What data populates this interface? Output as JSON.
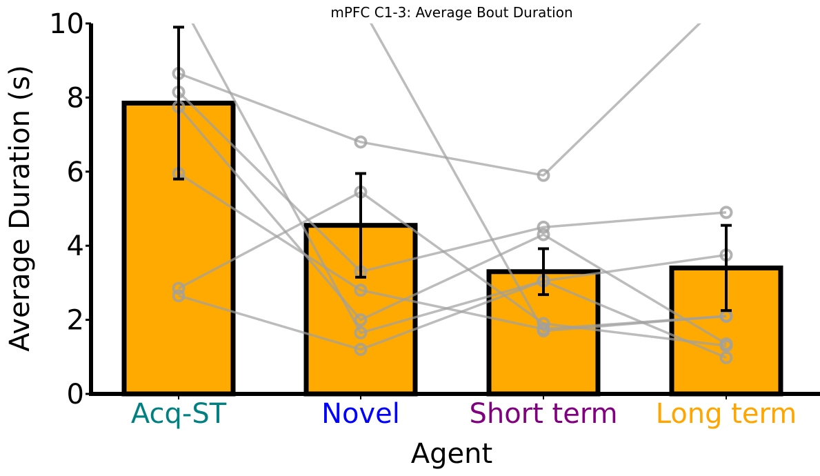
{
  "chart_data": {
    "type": "bar",
    "title": "mPFC C1-3: Average Bout Duration",
    "xlabel": "Agent",
    "ylabel": "Average Duration (s)",
    "ylim": [
      0,
      10
    ],
    "yticks": [
      "0",
      "2",
      "4",
      "6",
      "8",
      "10"
    ],
    "categories": [
      "Acq-ST",
      "Novel",
      "Short term",
      "Long term"
    ],
    "category_colors": [
      "#008080",
      "#0000ff",
      "#800080",
      "#ffa500"
    ],
    "values": [
      7.85,
      4.55,
      3.3,
      3.4
    ],
    "error": [
      2.05,
      1.4,
      0.62,
      1.15
    ],
    "bar_color": "#ffaa00",
    "bar_edge_color": "#000000",
    "individual_lines_color": "#a0a0a0",
    "individuals": [
      [
        8.65,
        6.8,
        5.9,
        10.7
      ],
      [
        8.15,
        3.3,
        4.5,
        4.9
      ],
      [
        7.75,
        2.0,
        4.3,
        1.35
      ],
      [
        5.95,
        2.8,
        1.75,
        2.1
      ],
      [
        2.85,
        5.45,
        1.9,
        1.3
      ],
      [
        2.65,
        1.2,
        3.05,
        0.98
      ],
      [
        10.7,
        1.65,
        3.05,
        3.75
      ],
      [
        13.0,
        10.5,
        1.7,
        2.1
      ]
    ],
    "grid": false,
    "legend": "none"
  }
}
